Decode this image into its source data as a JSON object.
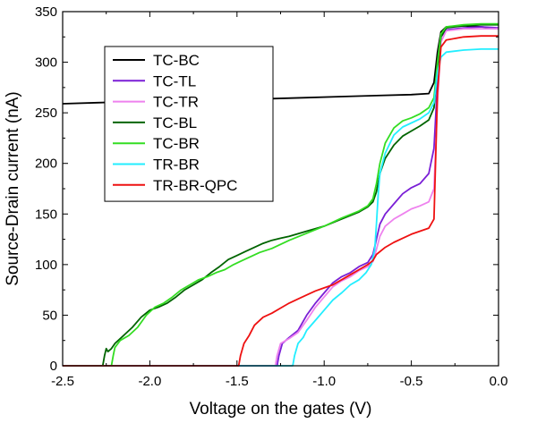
{
  "chart_data": {
    "type": "line",
    "title": "",
    "xlabel": "Voltage on the gates (V)",
    "ylabel": "Source-Drain current (nA)",
    "xlim": [
      -2.5,
      0.0
    ],
    "ylim": [
      0,
      350
    ],
    "xticks": [
      -2.5,
      -2.0,
      -1.5,
      -1.0,
      -0.5,
      0.0
    ],
    "xtick_labels": [
      "-2.5",
      "-2.0",
      "-1.5",
      "-1.0",
      "-0.5",
      "0.0"
    ],
    "yticks": [
      0,
      50,
      100,
      150,
      200,
      250,
      300,
      350
    ],
    "ytick_labels": [
      "0",
      "50",
      "100",
      "150",
      "200",
      "250",
      "300",
      "350"
    ],
    "grid": false,
    "legend_position": "upper-left",
    "series": [
      {
        "name": "TC-BC",
        "color": "#000000",
        "points": [
          [
            -2.5,
            259
          ],
          [
            -2.3,
            260
          ],
          [
            -2.1,
            261
          ],
          [
            -1.9,
            262
          ],
          [
            -1.7,
            263
          ],
          [
            -1.5,
            265
          ],
          [
            -1.3,
            264
          ],
          [
            -1.1,
            265
          ],
          [
            -0.9,
            266
          ],
          [
            -0.7,
            267
          ],
          [
            -0.5,
            268
          ],
          [
            -0.4,
            269
          ],
          [
            -0.37,
            280
          ],
          [
            -0.35,
            310
          ],
          [
            -0.33,
            330
          ],
          [
            -0.3,
            335
          ],
          [
            -0.2,
            336
          ],
          [
            -0.1,
            335
          ],
          [
            0.0,
            333
          ]
        ]
      },
      {
        "name": "TC-TL",
        "color": "#7a1fd6",
        "points": [
          [
            -2.5,
            0
          ],
          [
            -1.27,
            0
          ],
          [
            -1.26,
            10
          ],
          [
            -1.24,
            22
          ],
          [
            -1.2,
            28
          ],
          [
            -1.15,
            35
          ],
          [
            -1.1,
            50
          ],
          [
            -1.05,
            62
          ],
          [
            -1.0,
            72
          ],
          [
            -0.95,
            82
          ],
          [
            -0.9,
            88
          ],
          [
            -0.85,
            92
          ],
          [
            -0.8,
            98
          ],
          [
            -0.75,
            102
          ],
          [
            -0.72,
            110
          ],
          [
            -0.7,
            125
          ],
          [
            -0.68,
            140
          ],
          [
            -0.65,
            150
          ],
          [
            -0.6,
            160
          ],
          [
            -0.55,
            170
          ],
          [
            -0.5,
            176
          ],
          [
            -0.45,
            180
          ],
          [
            -0.4,
            190
          ],
          [
            -0.37,
            215
          ],
          [
            -0.35,
            280
          ],
          [
            -0.33,
            325
          ],
          [
            -0.3,
            332
          ],
          [
            -0.2,
            334
          ],
          [
            -0.1,
            335
          ],
          [
            0.0,
            334
          ]
        ]
      },
      {
        "name": "TC-TR",
        "color": "#ee82ee",
        "points": [
          [
            -2.5,
            0
          ],
          [
            -1.28,
            0
          ],
          [
            -1.27,
            10
          ],
          [
            -1.25,
            22
          ],
          [
            -1.2,
            27
          ],
          [
            -1.15,
            33
          ],
          [
            -1.1,
            45
          ],
          [
            -1.05,
            58
          ],
          [
            -1.0,
            68
          ],
          [
            -0.95,
            78
          ],
          [
            -0.9,
            84
          ],
          [
            -0.85,
            88
          ],
          [
            -0.8,
            94
          ],
          [
            -0.75,
            98
          ],
          [
            -0.72,
            103
          ],
          [
            -0.7,
            115
          ],
          [
            -0.68,
            128
          ],
          [
            -0.65,
            138
          ],
          [
            -0.6,
            145
          ],
          [
            -0.55,
            150
          ],
          [
            -0.5,
            155
          ],
          [
            -0.45,
            158
          ],
          [
            -0.4,
            162
          ],
          [
            -0.37,
            175
          ],
          [
            -0.35,
            260
          ],
          [
            -0.33,
            320
          ],
          [
            -0.3,
            331
          ],
          [
            -0.2,
            333
          ],
          [
            -0.1,
            333
          ],
          [
            0.0,
            333
          ]
        ]
      },
      {
        "name": "TC-BL",
        "color": "#006400",
        "points": [
          [
            -2.5,
            0
          ],
          [
            -2.27,
            0
          ],
          [
            -2.26,
            10
          ],
          [
            -2.25,
            17
          ],
          [
            -2.24,
            14
          ],
          [
            -2.22,
            17
          ],
          [
            -2.2,
            22
          ],
          [
            -2.15,
            30
          ],
          [
            -2.1,
            38
          ],
          [
            -2.05,
            48
          ],
          [
            -2.0,
            55
          ],
          [
            -1.95,
            58
          ],
          [
            -1.9,
            62
          ],
          [
            -1.85,
            68
          ],
          [
            -1.8,
            75
          ],
          [
            -1.75,
            80
          ],
          [
            -1.7,
            85
          ],
          [
            -1.65,
            92
          ],
          [
            -1.6,
            98
          ],
          [
            -1.55,
            105
          ],
          [
            -1.5,
            109
          ],
          [
            -1.45,
            113
          ],
          [
            -1.4,
            117
          ],
          [
            -1.35,
            121
          ],
          [
            -1.3,
            124
          ],
          [
            -1.25,
            126
          ],
          [
            -1.2,
            128
          ],
          [
            -1.1,
            133
          ],
          [
            -1.0,
            138
          ],
          [
            -0.9,
            145
          ],
          [
            -0.8,
            152
          ],
          [
            -0.75,
            157
          ],
          [
            -0.72,
            162
          ],
          [
            -0.7,
            172
          ],
          [
            -0.68,
            190
          ],
          [
            -0.65,
            205
          ],
          [
            -0.6,
            218
          ],
          [
            -0.55,
            227
          ],
          [
            -0.5,
            232
          ],
          [
            -0.45,
            237
          ],
          [
            -0.4,
            243
          ],
          [
            -0.37,
            255
          ],
          [
            -0.35,
            295
          ],
          [
            -0.33,
            325
          ],
          [
            -0.3,
            334
          ],
          [
            -0.2,
            336
          ],
          [
            -0.1,
            337
          ],
          [
            0.0,
            337
          ]
        ]
      },
      {
        "name": "TC-BR",
        "color": "#33dd22",
        "points": [
          [
            -2.5,
            0
          ],
          [
            -2.22,
            0
          ],
          [
            -2.21,
            10
          ],
          [
            -2.2,
            18
          ],
          [
            -2.17,
            25
          ],
          [
            -2.12,
            30
          ],
          [
            -2.07,
            38
          ],
          [
            -2.02,
            50
          ],
          [
            -1.97,
            58
          ],
          [
            -1.92,
            62
          ],
          [
            -1.87,
            68
          ],
          [
            -1.82,
            75
          ],
          [
            -1.77,
            80
          ],
          [
            -1.72,
            85
          ],
          [
            -1.67,
            88
          ],
          [
            -1.62,
            92
          ],
          [
            -1.57,
            95
          ],
          [
            -1.52,
            100
          ],
          [
            -1.47,
            104
          ],
          [
            -1.42,
            108
          ],
          [
            -1.37,
            112
          ],
          [
            -1.3,
            116
          ],
          [
            -1.2,
            124
          ],
          [
            -1.1,
            131
          ],
          [
            -1.0,
            138
          ],
          [
            -0.9,
            146
          ],
          [
            -0.8,
            153
          ],
          [
            -0.75,
            158
          ],
          [
            -0.72,
            165
          ],
          [
            -0.7,
            180
          ],
          [
            -0.68,
            200
          ],
          [
            -0.65,
            220
          ],
          [
            -0.6,
            235
          ],
          [
            -0.55,
            242
          ],
          [
            -0.5,
            245
          ],
          [
            -0.45,
            249
          ],
          [
            -0.4,
            255
          ],
          [
            -0.37,
            265
          ],
          [
            -0.35,
            300
          ],
          [
            -0.33,
            328
          ],
          [
            -0.3,
            335
          ],
          [
            -0.2,
            337
          ],
          [
            -0.1,
            338
          ],
          [
            0.0,
            338
          ]
        ]
      },
      {
        "name": "TR-BR",
        "color": "#22eeff",
        "points": [
          [
            -2.5,
            0
          ],
          [
            -1.18,
            0
          ],
          [
            -1.17,
            10
          ],
          [
            -1.15,
            22
          ],
          [
            -1.12,
            28
          ],
          [
            -1.1,
            35
          ],
          [
            -1.05,
            45
          ],
          [
            -1.0,
            55
          ],
          [
            -0.95,
            65
          ],
          [
            -0.9,
            72
          ],
          [
            -0.85,
            80
          ],
          [
            -0.8,
            85
          ],
          [
            -0.76,
            92
          ],
          [
            -0.73,
            100
          ],
          [
            -0.71,
            115
          ],
          [
            -0.7,
            140
          ],
          [
            -0.69,
            170
          ],
          [
            -0.68,
            190
          ],
          [
            -0.65,
            210
          ],
          [
            -0.6,
            228
          ],
          [
            -0.55,
            236
          ],
          [
            -0.5,
            240
          ],
          [
            -0.45,
            244
          ],
          [
            -0.4,
            250
          ],
          [
            -0.37,
            260
          ],
          [
            -0.35,
            290
          ],
          [
            -0.33,
            305
          ],
          [
            -0.3,
            310
          ],
          [
            -0.2,
            312
          ],
          [
            -0.1,
            313
          ],
          [
            0.0,
            313
          ]
        ]
      },
      {
        "name": "TR-BR-QPC",
        "color": "#ee1111",
        "points": [
          [
            -2.5,
            0
          ],
          [
            -1.49,
            0
          ],
          [
            -1.48,
            10
          ],
          [
            -1.46,
            22
          ],
          [
            -1.43,
            30
          ],
          [
            -1.4,
            40
          ],
          [
            -1.35,
            48
          ],
          [
            -1.3,
            52
          ],
          [
            -1.25,
            57
          ],
          [
            -1.2,
            62
          ],
          [
            -1.15,
            66
          ],
          [
            -1.1,
            70
          ],
          [
            -1.05,
            74
          ],
          [
            -1.0,
            77
          ],
          [
            -0.95,
            80
          ],
          [
            -0.9,
            85
          ],
          [
            -0.85,
            90
          ],
          [
            -0.8,
            95
          ],
          [
            -0.75,
            100
          ],
          [
            -0.72,
            104
          ],
          [
            -0.7,
            110
          ],
          [
            -0.65,
            117
          ],
          [
            -0.6,
            122
          ],
          [
            -0.55,
            126
          ],
          [
            -0.5,
            130
          ],
          [
            -0.45,
            133
          ],
          [
            -0.4,
            136
          ],
          [
            -0.37,
            145
          ],
          [
            -0.35,
            270
          ],
          [
            -0.33,
            315
          ],
          [
            -0.3,
            322
          ],
          [
            -0.2,
            325
          ],
          [
            -0.1,
            326
          ],
          [
            0.0,
            326
          ]
        ]
      }
    ]
  }
}
